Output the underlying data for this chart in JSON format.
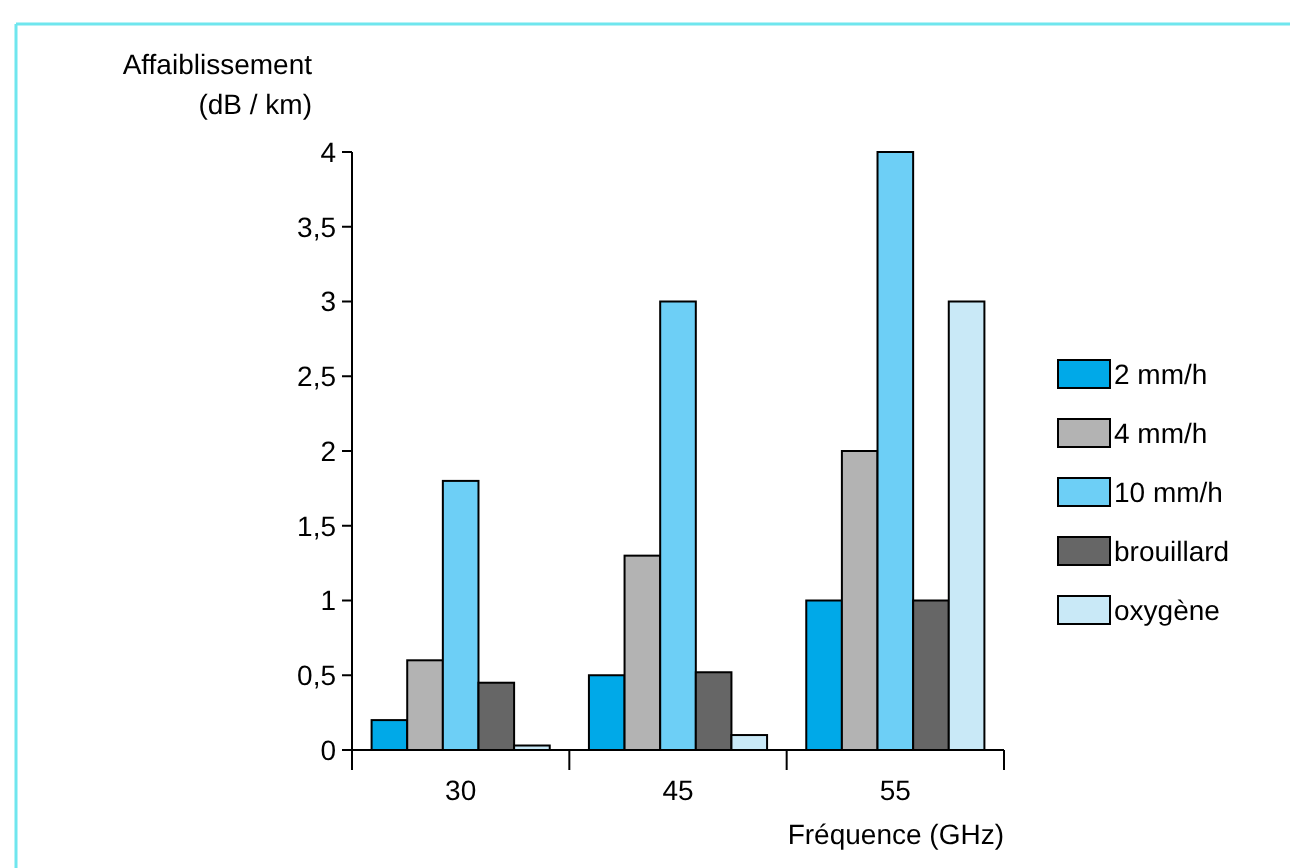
{
  "chart_data": {
    "type": "bar",
    "ylabel": "Affaiblissement\n(dB / km)",
    "xlabel": "Fréquence (GHz)",
    "categories": [
      "30",
      "45",
      "55"
    ],
    "series": [
      {
        "name": "2 mm/h",
        "color": "#00a9e8",
        "values": [
          0.2,
          0.5,
          1
        ]
      },
      {
        "name": "4 mm/h",
        "color": "#b3b3b3",
        "values": [
          0.6,
          1.3,
          2
        ]
      },
      {
        "name": "10 mm/h",
        "color": "#6dcff6",
        "values": [
          1.8,
          3,
          4
        ]
      },
      {
        "name": "brouillard",
        "color": "#666666",
        "values": [
          0.45,
          0.52,
          1
        ]
      },
      {
        "name": "oxygène",
        "color": "#c9e9f7",
        "values": [
          0.03,
          0.1,
          3
        ]
      }
    ],
    "ylim": [
      0,
      4
    ],
    "yticks": [
      0,
      {
        "value": 0.5,
        "label": "0,5"
      },
      1,
      {
        "value": 1.5,
        "label": "1,5"
      },
      2,
      {
        "value": 2.5,
        "label": "2,5"
      },
      3,
      {
        "value": 3.5,
        "label": "3,5"
      },
      4
    ],
    "grid": false,
    "legend": "right"
  }
}
